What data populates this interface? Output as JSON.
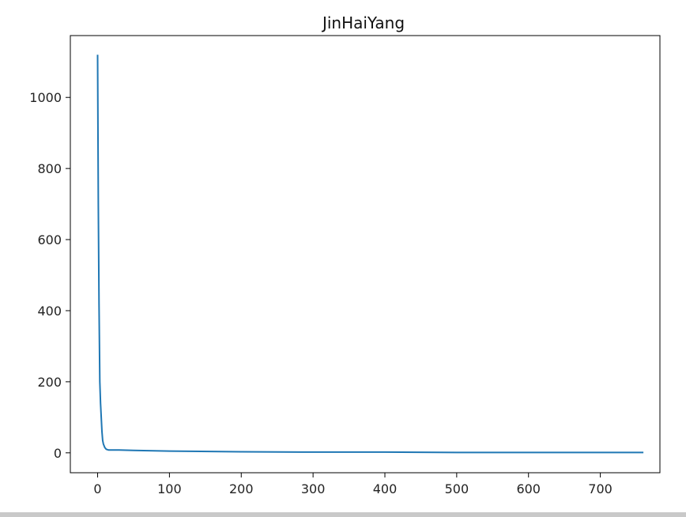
{
  "chart_data": {
    "type": "line",
    "title": "JinHaiYang",
    "xlabel": "",
    "ylabel": "",
    "xlim": [
      -38,
      783
    ],
    "ylim": [
      -56,
      1174
    ],
    "xticks": [
      0,
      100,
      200,
      300,
      400,
      500,
      600,
      700
    ],
    "yticks": [
      0,
      200,
      400,
      600,
      800,
      1000
    ],
    "grid": false,
    "series": [
      {
        "color": "#1f77b4",
        "x": [
          0,
          1,
          2,
          3,
          4,
          5,
          6,
          7,
          8,
          10,
          12,
          15,
          20,
          30,
          50,
          100,
          200,
          300,
          400,
          500,
          600,
          700,
          760
        ],
        "y": [
          1120,
          700,
          420,
          200,
          140,
          100,
          60,
          35,
          25,
          15,
          10,
          8,
          8,
          8,
          7,
          5,
          3,
          2,
          2,
          1,
          1,
          1,
          1
        ]
      }
    ]
  }
}
